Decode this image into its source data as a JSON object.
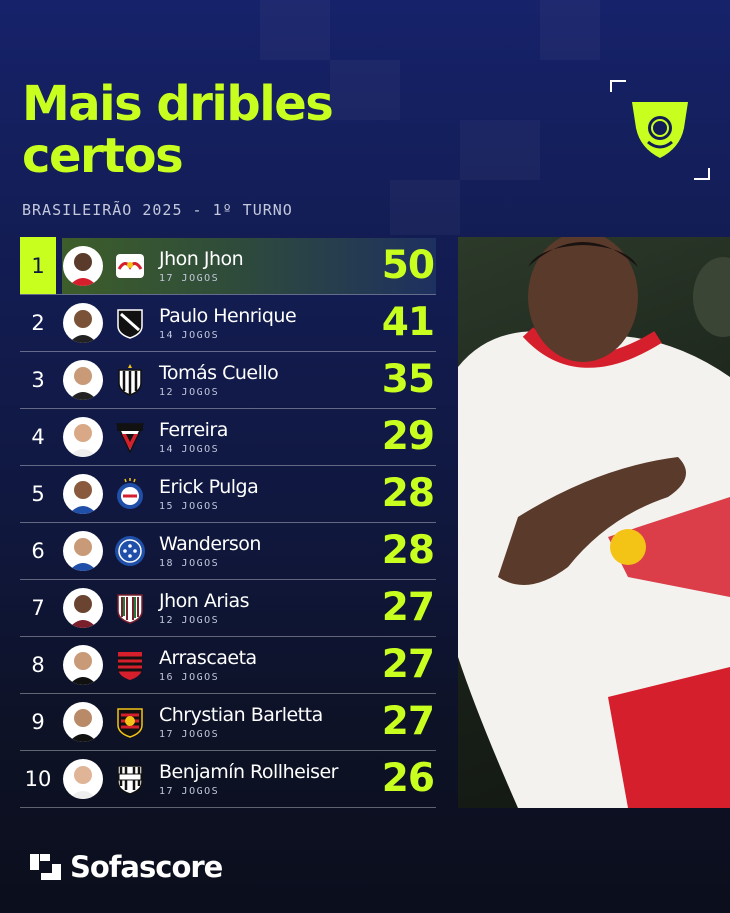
{
  "title_line1": "Mais dribles",
  "title_line2": "certos",
  "subtitle": "BRASILEIRÃO 2025 - 1º TURNO",
  "brand": "Sofascore",
  "colors": {
    "accent": "#c8ff1f",
    "background": "#131d55"
  },
  "stat_label": "dribles certos",
  "rows": [
    {
      "rank": "1",
      "player": "Jhon Jhon",
      "games": "17 JOGOS",
      "value": "50",
      "crest": "red-bull-bragantino-crest"
    },
    {
      "rank": "2",
      "player": "Paulo Henrique",
      "games": "14 JOGOS",
      "value": "41",
      "crest": "vasco-crest"
    },
    {
      "rank": "3",
      "player": "Tomás Cuello",
      "games": "12 JOGOS",
      "value": "35",
      "crest": "atletico-mineiro-crest"
    },
    {
      "rank": "4",
      "player": "Ferreira",
      "games": "14 JOGOS",
      "value": "29",
      "crest": "sao-paulo-crest"
    },
    {
      "rank": "5",
      "player": "Erick Pulga",
      "games": "15 JOGOS",
      "value": "28",
      "crest": "bahia-crest"
    },
    {
      "rank": "6",
      "player": "Wanderson",
      "games": "18 JOGOS",
      "value": "28",
      "crest": "cruzeiro-crest"
    },
    {
      "rank": "7",
      "player": "Jhon Arias",
      "games": "12 JOGOS",
      "value": "27",
      "crest": "fluminense-crest"
    },
    {
      "rank": "8",
      "player": "Arrascaeta",
      "games": "16 JOGOS",
      "value": "27",
      "crest": "flamengo-crest"
    },
    {
      "rank": "9",
      "player": "Chrystian Barletta",
      "games": "17 JOGOS",
      "value": "27",
      "crest": "sport-crest"
    },
    {
      "rank": "10",
      "player": "Benjamín Rollheiser",
      "games": "17 JOGOS",
      "value": "26",
      "crest": "santos-crest"
    }
  ]
}
